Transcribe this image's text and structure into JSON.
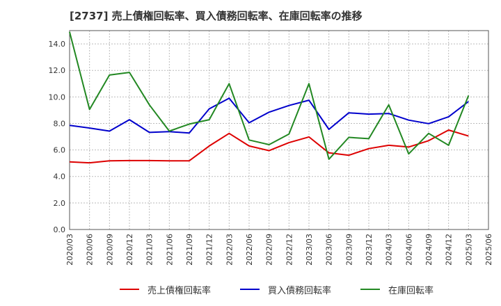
{
  "chart_data": {
    "type": "line",
    "title": "[2737]  売上債権回転率、買入債務回転率、在庫回転率の推移",
    "xlabel": "",
    "ylabel": "",
    "ylim": [
      0,
      15
    ],
    "yticks": [
      "0.0",
      "2.0",
      "4.0",
      "6.0",
      "8.0",
      "10.0",
      "12.0",
      "14.0"
    ],
    "x": [
      "2020/03",
      "2020/06",
      "2020/09",
      "2020/12",
      "2021/03",
      "2021/06",
      "2021/09",
      "2021/12",
      "2022/03",
      "2022/06",
      "2022/09",
      "2022/12",
      "2023/03",
      "2023/06",
      "2023/09",
      "2023/12",
      "2024/03",
      "2024/06",
      "2024/09",
      "2024/12",
      "2025/03",
      "2025/06"
    ],
    "grid": true,
    "legend_position": "bottom",
    "series": [
      {
        "name": "売上債権回転率",
        "color": "#dd0000",
        "values": [
          5.1,
          5.03,
          5.18,
          5.2,
          5.2,
          5.18,
          5.18,
          6.3,
          7.25,
          6.3,
          5.95,
          6.55,
          6.98,
          5.78,
          5.6,
          6.1,
          6.35,
          6.22,
          6.7,
          7.5,
          7.05,
          null
        ]
      },
      {
        "name": "買入債務回転率",
        "color": "#0000cc",
        "values": [
          7.85,
          7.65,
          7.42,
          8.28,
          7.32,
          7.38,
          7.28,
          9.1,
          9.9,
          8.05,
          8.85,
          9.35,
          9.75,
          7.55,
          8.8,
          8.7,
          8.75,
          8.25,
          7.98,
          8.5,
          9.65,
          null
        ]
      },
      {
        "name": "在庫回転率",
        "color": "#228822",
        "values": [
          14.9,
          9.05,
          11.65,
          11.85,
          9.4,
          7.42,
          7.95,
          8.28,
          11.0,
          6.75,
          6.4,
          7.2,
          11.0,
          5.3,
          6.95,
          6.85,
          9.4,
          5.7,
          7.25,
          6.35,
          10.1,
          null
        ]
      }
    ]
  }
}
